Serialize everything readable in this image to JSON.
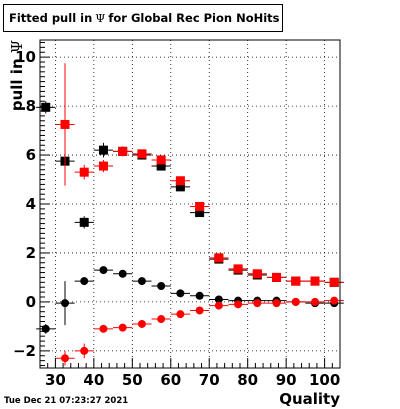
{
  "title": {
    "prefix": "Fitted pull in",
    "symbol": "Ψ",
    "suffix": "for Global Rec Pion NoHits"
  },
  "timestamp": "Tue Dec 21 07:23:27 2021",
  "chart_data": {
    "type": "scatter",
    "xlabel": "Quality",
    "ylabel_prefix": "pull in",
    "ylabel_symbol": "Ψ",
    "xlim": [
      26,
      104
    ],
    "ylim": [
      -2.7,
      10.7
    ],
    "x_ticks": [
      30,
      40,
      50,
      60,
      70,
      80,
      90,
      100
    ],
    "y_ticks": [
      -2,
      0,
      2,
      4,
      6,
      8,
      10
    ],
    "grid": true,
    "x": [
      27.5,
      32.5,
      37.5,
      42.5,
      47.5,
      52.5,
      57.5,
      62.5,
      67.5,
      72.5,
      77.5,
      82.5,
      87.5,
      92.5,
      97.5,
      102.5
    ],
    "series": [
      {
        "marker": "square",
        "color": "#000000",
        "y": [
          7.95,
          5.75,
          3.25,
          6.2,
          6.15,
          6.0,
          5.55,
          4.7,
          3.65,
          1.75,
          1.3,
          1.1,
          1.0,
          0.85,
          0.85,
          0.8
        ],
        "err": [
          0.25,
          0.3,
          0.25,
          0.3,
          0.2,
          0.15,
          0.15,
          0.15,
          0.12,
          0.1,
          0.08,
          0.05,
          0.05,
          0.05,
          0.05,
          0.05
        ]
      },
      {
        "marker": "square",
        "color": "#ff0000",
        "y": [
          null,
          7.25,
          5.3,
          5.55,
          6.15,
          6.05,
          5.8,
          4.95,
          3.9,
          1.8,
          1.35,
          1.15,
          1.0,
          0.85,
          0.85,
          0.8
        ],
        "err": [
          null,
          2.5,
          0.3,
          0.25,
          0.2,
          0.15,
          0.15,
          0.12,
          0.12,
          0.1,
          0.08,
          0.05,
          0.05,
          0.05,
          0.05,
          0.05
        ]
      },
      {
        "marker": "circle",
        "color": "#000000",
        "y": [
          -1.1,
          -0.05,
          0.85,
          1.3,
          1.15,
          0.85,
          0.65,
          0.35,
          0.25,
          0.1,
          0.05,
          0.05,
          0.05,
          0.0,
          -0.05,
          -0.05
        ],
        "err": [
          0.2,
          0.9,
          0.15,
          0.12,
          0.1,
          0.1,
          0.08,
          0.08,
          0.06,
          0.05,
          0.04,
          0.04,
          0.04,
          0.04,
          0.04,
          0.04
        ]
      },
      {
        "marker": "circle",
        "color": "#ff0000",
        "y": [
          null,
          -2.3,
          -2.0,
          -1.1,
          -1.05,
          -0.9,
          -0.7,
          -0.5,
          -0.35,
          -0.15,
          -0.1,
          -0.05,
          -0.05,
          0.0,
          0.0,
          0.05
        ],
        "err": [
          null,
          0.3,
          0.3,
          0.12,
          0.1,
          0.08,
          0.08,
          0.06,
          0.06,
          0.05,
          0.05,
          0.04,
          0.04,
          0.04,
          0.04,
          0.04
        ]
      }
    ]
  }
}
